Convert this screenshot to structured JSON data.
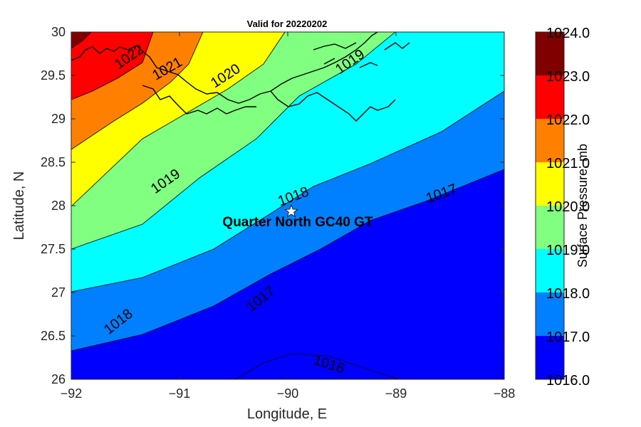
{
  "title": "Valid for 20220202",
  "map": {
    "xlabel": "Longitude, E",
    "ylabel": "Latitude, N",
    "xlim": [
      -92,
      -88
    ],
    "ylim": [
      26,
      30
    ],
    "x_ticks": [
      "−92",
      "−91",
      "−90",
      "−89",
      "−88"
    ],
    "y_ticks": [
      "26",
      "26.5",
      "27",
      "27.5",
      "28",
      "28.5",
      "29",
      "29.5",
      "30"
    ],
    "contour_labels": [
      "1022",
      "1021",
      "1020",
      "1019",
      "1019",
      "1018",
      "1018",
      "1017",
      "1017",
      "1016"
    ],
    "station": {
      "name": "Quarter North GC40 GT",
      "lon": -89.97,
      "lat": 27.95,
      "marker": "star-icon"
    }
  },
  "colorbar": {
    "title": "Surface Pressure, mb",
    "levels": [
      "1016.0",
      "1017.0",
      "1018.0",
      "1019.0",
      "1020.0",
      "1021.0",
      "1022.0",
      "1023.0",
      "1024.0"
    ],
    "colors": [
      "#0000ff",
      "#0080ff",
      "#00ffff",
      "#80ff80",
      "#ffff00",
      "#ff8000",
      "#ff0000",
      "#800000"
    ]
  },
  "chart_data": {
    "type": "heatmap",
    "title": "Valid for 20220202",
    "xlabel": "Longitude, E",
    "ylabel": "Latitude, N",
    "xlim": [
      -92,
      -88
    ],
    "ylim": [
      26,
      30
    ],
    "variable": "Surface Pressure, mb",
    "contour_levels": [
      1016,
      1017,
      1018,
      1019,
      1020,
      1021,
      1022,
      1023,
      1024
    ],
    "gradient": "pressure decreases from northwest (>1023 mb) to southeast (<1017 mb)",
    "points": [
      {
        "label": "Quarter North GC40 GT",
        "lon": -89.97,
        "lat": 27.95
      }
    ]
  }
}
